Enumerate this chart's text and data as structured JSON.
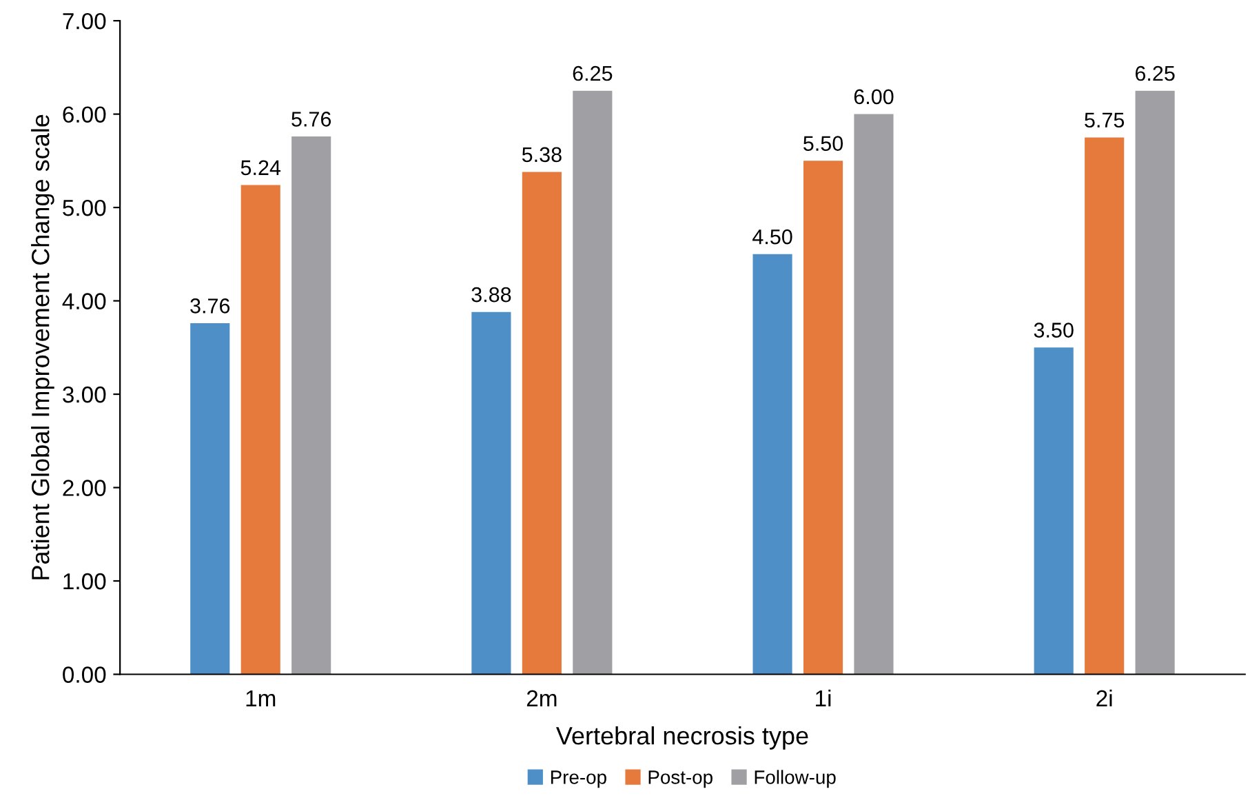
{
  "chart_data": {
    "type": "bar",
    "xlabel": "Vertebral necrosis type",
    "ylabel": "Patient Global Improvement Change scale",
    "categories": [
      "1m",
      "2m",
      "1i",
      "2i"
    ],
    "series": [
      {
        "name": "Pre-op",
        "color": "#4f8fc8",
        "values": [
          3.76,
          3.88,
          4.5,
          3.5
        ],
        "value_labels": [
          "3.76",
          "3.88",
          "4.50",
          "3.50"
        ]
      },
      {
        "name": "Post-op",
        "color": "#e57a3c",
        "values": [
          5.24,
          5.38,
          5.5,
          5.75
        ],
        "value_labels": [
          "5.24",
          "5.38",
          "5.50",
          "5.75"
        ]
      },
      {
        "name": "Follow-up",
        "color": "#a0a0a4",
        "values": [
          5.76,
          6.25,
          6.0,
          6.25
        ],
        "value_labels": [
          "5.76",
          "6.25",
          "6.00",
          "6.25"
        ]
      }
    ],
    "ylim": [
      0,
      7
    ],
    "yticks": [
      {
        "value": 0,
        "label": "0.00"
      },
      {
        "value": 1,
        "label": "1.00"
      },
      {
        "value": 2,
        "label": "2.00"
      },
      {
        "value": 3,
        "label": "3.00"
      },
      {
        "value": 4,
        "label": "4.00"
      },
      {
        "value": 5,
        "label": "5.00"
      },
      {
        "value": 6,
        "label": "6.00"
      },
      {
        "value": 7,
        "label": "7.00"
      }
    ],
    "grid": false,
    "legend": "bottom"
  }
}
